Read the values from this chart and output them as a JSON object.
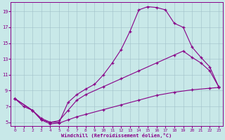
{
  "xlabel": "Windchill (Refroidissement éolien,°C)",
  "bg_color": "#c8e8e8",
  "grid_color": "#a0c0c8",
  "line_color": "#880088",
  "xlim": [
    0,
    23
  ],
  "ylim": [
    4.5,
    20.2
  ],
  "xticks": [
    0,
    1,
    2,
    3,
    4,
    5,
    6,
    7,
    8,
    9,
    10,
    11,
    12,
    13,
    14,
    15,
    16,
    17,
    18,
    19,
    20,
    21,
    22,
    23
  ],
  "yticks": [
    5,
    7,
    9,
    11,
    13,
    15,
    17,
    19
  ],
  "line1_x": [
    0,
    1,
    2,
    3,
    4,
    5,
    6,
    7,
    8,
    9,
    10,
    11,
    12,
    13,
    14,
    15,
    16,
    17,
    18,
    19,
    20,
    21,
    22,
    23
  ],
  "line1_y": [
    8.0,
    7.0,
    6.5,
    5.3,
    5.0,
    5.0,
    7.5,
    8.5,
    9.2,
    9.8,
    11.0,
    12.5,
    14.2,
    16.5,
    19.2,
    19.6,
    19.5,
    19.2,
    17.5,
    17.0,
    14.5,
    13.2,
    12.0,
    9.5
  ],
  "line2_x": [
    0,
    2,
    3,
    4,
    5,
    6,
    7,
    8,
    10,
    12,
    14,
    16,
    18,
    19,
    20,
    21,
    22,
    23
  ],
  "line2_y": [
    8.0,
    6.5,
    5.5,
    5.0,
    5.2,
    6.5,
    7.8,
    8.5,
    9.5,
    10.5,
    11.5,
    12.5,
    13.5,
    14.0,
    13.2,
    12.5,
    11.5,
    9.5
  ],
  "line3_x": [
    0,
    2,
    3,
    4,
    5,
    6,
    7,
    8,
    10,
    12,
    14,
    16,
    18,
    20,
    22,
    23
  ],
  "line3_y": [
    8.0,
    6.5,
    5.3,
    4.8,
    4.9,
    5.3,
    5.7,
    6.0,
    6.6,
    7.2,
    7.8,
    8.4,
    8.8,
    9.1,
    9.3,
    9.4
  ]
}
